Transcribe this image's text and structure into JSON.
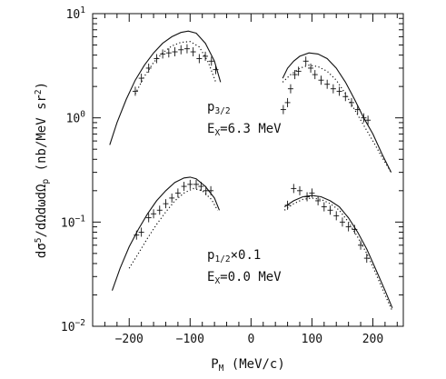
{
  "chart_data": {
    "type": "scatter",
    "title": "",
    "xlabel": {
      "main": "P",
      "sub": "M",
      "rest": " (MeV/c)"
    },
    "ylabel": {
      "a": "dσ",
      "sup5": "5",
      "b": "/dΩdωdΩ",
      "subp": "p",
      "c": " (nb/MeV sr",
      "sup2": "2",
      "d": ")"
    },
    "xlim": [
      -260,
      250
    ],
    "ylim": [
      0.01,
      10
    ],
    "y_scale": "log",
    "x_ticks": [
      {
        "value": -200,
        "label": "−200"
      },
      {
        "value": -100,
        "label": "−100"
      },
      {
        "value": 0,
        "label": "0"
      },
      {
        "value": 100,
        "label": "100"
      },
      {
        "value": 200,
        "label": "200"
      }
    ],
    "y_ticks": [
      {
        "value": 0.01,
        "base": "10",
        "exp": "−2"
      },
      {
        "value": 0.1,
        "base": "10",
        "exp": "−1"
      },
      {
        "value": 1,
        "base": "10",
        "exp": "0"
      },
      {
        "value": 10,
        "base": "10",
        "exp": "1"
      }
    ],
    "annotations": [
      {
        "id": "p32",
        "main": "p",
        "sub": "3/2",
        "tail": ""
      },
      {
        "id": "ex63",
        "main": "E",
        "sub": "X",
        "tail": "=6.3 MeV"
      },
      {
        "id": "p12",
        "main": "p",
        "sub": "1/2",
        "tail": "×0.1"
      },
      {
        "id": "ex00",
        "main": "E",
        "sub": "X",
        "tail": "=0.0 MeV"
      }
    ],
    "series": [
      {
        "style": "data",
        "x": [
          -190,
          -180,
          -168,
          -155,
          -145,
          -135,
          -125,
          -115,
          -105,
          -95,
          -85,
          -75,
          -65,
          -58
        ],
        "y": [
          1.8,
          2.4,
          3.0,
          3.7,
          4.1,
          4.2,
          4.3,
          4.5,
          4.6,
          4.3,
          3.7,
          3.9,
          3.5,
          2.9
        ]
      },
      {
        "style": "data",
        "x": [
          53,
          60,
          65,
          72,
          78,
          90,
          98,
          105,
          115,
          125,
          135,
          145,
          155,
          165,
          175,
          185,
          192
        ],
        "y": [
          1.2,
          1.4,
          1.9,
          2.6,
          2.8,
          3.5,
          3.0,
          2.6,
          2.3,
          2.1,
          1.9,
          1.8,
          1.6,
          1.4,
          1.2,
          1.0,
          0.95
        ]
      },
      {
        "style": "solid",
        "x": [
          -232,
          -220,
          -205,
          -190,
          -175,
          -160,
          -145,
          -130,
          -115,
          -103,
          -90,
          -75,
          -60,
          -50
        ],
        "y": [
          0.55,
          0.9,
          1.5,
          2.3,
          3.2,
          4.2,
          5.2,
          6.0,
          6.6,
          6.8,
          6.5,
          5.2,
          3.5,
          2.2
        ]
      },
      {
        "style": "dotted",
        "x": [
          -190,
          -175,
          -160,
          -145,
          -130,
          -115,
          -100,
          -85,
          -70,
          -58
        ],
        "y": [
          1.7,
          2.5,
          3.4,
          4.2,
          4.9,
          5.3,
          5.4,
          4.8,
          3.4,
          2.2
        ]
      },
      {
        "style": "solid",
        "x": [
          52,
          60,
          70,
          80,
          95,
          110,
          125,
          140,
          155,
          170,
          185,
          200,
          215,
          230
        ],
        "y": [
          2.4,
          3.0,
          3.5,
          3.9,
          4.2,
          4.1,
          3.7,
          3.0,
          2.2,
          1.5,
          1.0,
          0.7,
          0.45,
          0.3
        ]
      },
      {
        "style": "dotted",
        "x": [
          52,
          65,
          80,
          95,
          110,
          125,
          140,
          155,
          170,
          185,
          200,
          215,
          230
        ],
        "y": [
          2.2,
          2.6,
          3.0,
          3.2,
          3.1,
          2.8,
          2.3,
          1.7,
          1.2,
          0.85,
          0.6,
          0.42,
          0.3
        ]
      },
      {
        "style": "data",
        "x": [
          -188,
          -180,
          -168,
          -160,
          -150,
          -140,
          -130,
          -120,
          -110,
          -100,
          -90,
          -82,
          -74,
          -66
        ],
        "y": [
          0.075,
          0.08,
          0.11,
          0.12,
          0.13,
          0.15,
          0.17,
          0.19,
          0.22,
          0.23,
          0.23,
          0.22,
          0.2,
          0.2
        ]
      },
      {
        "style": "data",
        "x": [
          60,
          70,
          80,
          92,
          100,
          110,
          120,
          130,
          140,
          150,
          160,
          170,
          180,
          190
        ],
        "y": [
          0.145,
          0.21,
          0.2,
          0.175,
          0.19,
          0.16,
          0.14,
          0.13,
          0.115,
          0.1,
          0.09,
          0.085,
          0.06,
          0.045
        ]
      },
      {
        "style": "solid",
        "x": [
          -228,
          -215,
          -200,
          -185,
          -170,
          -155,
          -140,
          -125,
          -110,
          -100,
          -90,
          -75,
          -60,
          -52
        ],
        "y": [
          0.022,
          0.036,
          0.058,
          0.085,
          0.12,
          0.16,
          0.2,
          0.24,
          0.265,
          0.27,
          0.26,
          0.22,
          0.17,
          0.13
        ]
      },
      {
        "style": "dotted",
        "x": [
          -200,
          -185,
          -170,
          -155,
          -140,
          -125,
          -110,
          -95,
          -80,
          -65,
          -55
        ],
        "y": [
          0.036,
          0.05,
          0.07,
          0.095,
          0.125,
          0.16,
          0.19,
          0.21,
          0.2,
          0.165,
          0.13
        ]
      },
      {
        "style": "solid",
        "x": [
          55,
          70,
          85,
          100,
          115,
          130,
          145,
          160,
          175,
          190,
          205,
          220,
          232
        ],
        "y": [
          0.14,
          0.16,
          0.175,
          0.18,
          0.175,
          0.16,
          0.14,
          0.11,
          0.08,
          0.055,
          0.035,
          0.022,
          0.015
        ]
      },
      {
        "style": "dotted",
        "x": [
          55,
          70,
          85,
          100,
          115,
          130,
          145,
          160,
          175,
          190,
          205,
          220,
          232
        ],
        "y": [
          0.13,
          0.15,
          0.165,
          0.17,
          0.165,
          0.15,
          0.13,
          0.1,
          0.072,
          0.05,
          0.032,
          0.02,
          0.014
        ]
      }
    ]
  }
}
